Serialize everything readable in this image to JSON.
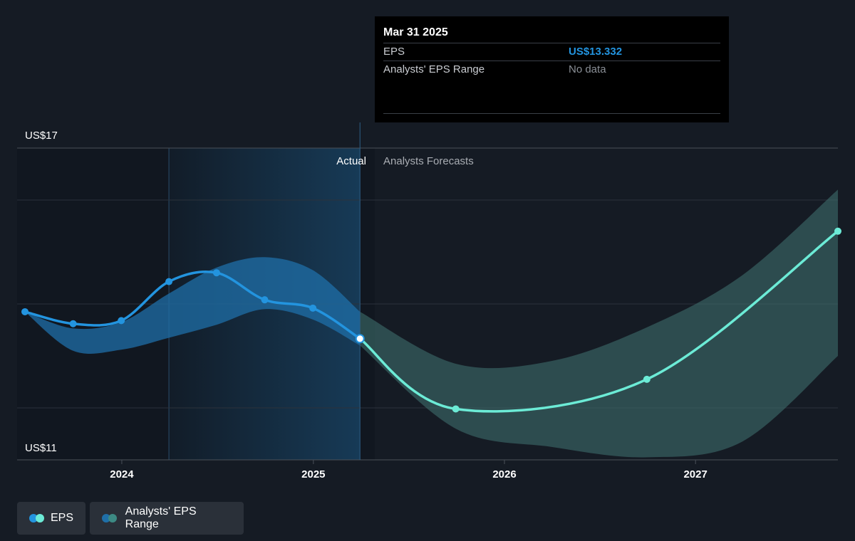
{
  "colors": {
    "background": "#151b24",
    "eps_actual": "#2394df",
    "eps_forecast": "#6cebd6",
    "range_actual": "#1f6fa8",
    "range_forecast": "#3d6e6c",
    "grid": "#3a4049"
  },
  "chart_data": {
    "type": "line",
    "title": "",
    "xlabel": "",
    "ylabel": "",
    "ylim": [
      11,
      17
    ],
    "y_tick_labels": [
      "US$17",
      "US$11"
    ],
    "x_ticks": [
      {
        "label": "2024",
        "value": "2024-01-01"
      },
      {
        "label": "2025",
        "value": "2025-01-01"
      },
      {
        "label": "2026",
        "value": "2026-01-01"
      },
      {
        "label": "2027",
        "value": "2027-01-01"
      }
    ],
    "x_range": [
      "2023-06-15",
      "2027-09-30"
    ],
    "section_labels": {
      "actual": "Actual",
      "forecast": "Analysts Forecasts"
    },
    "divider_date": "2025-03-31",
    "series": [
      {
        "name": "EPS",
        "points": [
          {
            "x": "2023-06-30",
            "y": 13.85
          },
          {
            "x": "2023-09-30",
            "y": 13.62
          },
          {
            "x": "2023-12-31",
            "y": 13.68
          },
          {
            "x": "2024-03-31",
            "y": 14.43
          },
          {
            "x": "2024-06-30",
            "y": 14.6
          },
          {
            "x": "2024-09-30",
            "y": 14.08
          },
          {
            "x": "2024-12-31",
            "y": 13.92
          },
          {
            "x": "2025-03-31",
            "y": 13.332
          }
        ]
      },
      {
        "name": "EPS",
        "points": [
          {
            "x": "2025-03-31",
            "y": 13.332
          },
          {
            "x": "2025-09-30",
            "y": 11.98
          },
          {
            "x": "2026-09-30",
            "y": 12.55
          },
          {
            "x": "2027-09-30",
            "y": 15.4
          }
        ]
      },
      {
        "name": "Analysts' EPS Range",
        "upper": [
          {
            "x": "2023-06-30",
            "y": 13.85
          },
          {
            "x": "2023-09-30",
            "y": 13.53
          },
          {
            "x": "2023-12-31",
            "y": 13.65
          },
          {
            "x": "2024-03-31",
            "y": 14.2
          },
          {
            "x": "2024-06-30",
            "y": 14.7
          },
          {
            "x": "2024-09-30",
            "y": 14.9
          },
          {
            "x": "2024-12-31",
            "y": 14.65
          },
          {
            "x": "2025-03-31",
            "y": 13.85
          },
          {
            "x": "2025-09-30",
            "y": 12.85
          },
          {
            "x": "2026-03-31",
            "y": 12.9
          },
          {
            "x": "2026-09-30",
            "y": 13.55
          },
          {
            "x": "2027-03-31",
            "y": 14.55
          },
          {
            "x": "2027-09-30",
            "y": 16.2
          }
        ],
        "lower": [
          {
            "x": "2023-06-30",
            "y": 13.85
          },
          {
            "x": "2023-09-30",
            "y": 13.1
          },
          {
            "x": "2023-12-31",
            "y": 13.12
          },
          {
            "x": "2024-03-31",
            "y": 13.35
          },
          {
            "x": "2024-06-30",
            "y": 13.6
          },
          {
            "x": "2024-09-30",
            "y": 13.9
          },
          {
            "x": "2024-12-31",
            "y": 13.7
          },
          {
            "x": "2025-03-31",
            "y": 13.2
          },
          {
            "x": "2025-09-30",
            "y": 11.6
          },
          {
            "x": "2026-03-31",
            "y": 11.25
          },
          {
            "x": "2026-09-30",
            "y": 11.05
          },
          {
            "x": "2027-03-31",
            "y": 11.35
          },
          {
            "x": "2027-09-30",
            "y": 13.0
          }
        ]
      }
    ],
    "legend": {
      "placement": "bottom-left",
      "items": [
        "EPS",
        "Analysts' EPS Range"
      ]
    },
    "tooltip": {
      "date": "Mar 31 2025",
      "rows": [
        {
          "label": "EPS",
          "value": "US$13.332"
        },
        {
          "label": "Analysts' EPS Range",
          "value": "No data"
        }
      ]
    }
  }
}
